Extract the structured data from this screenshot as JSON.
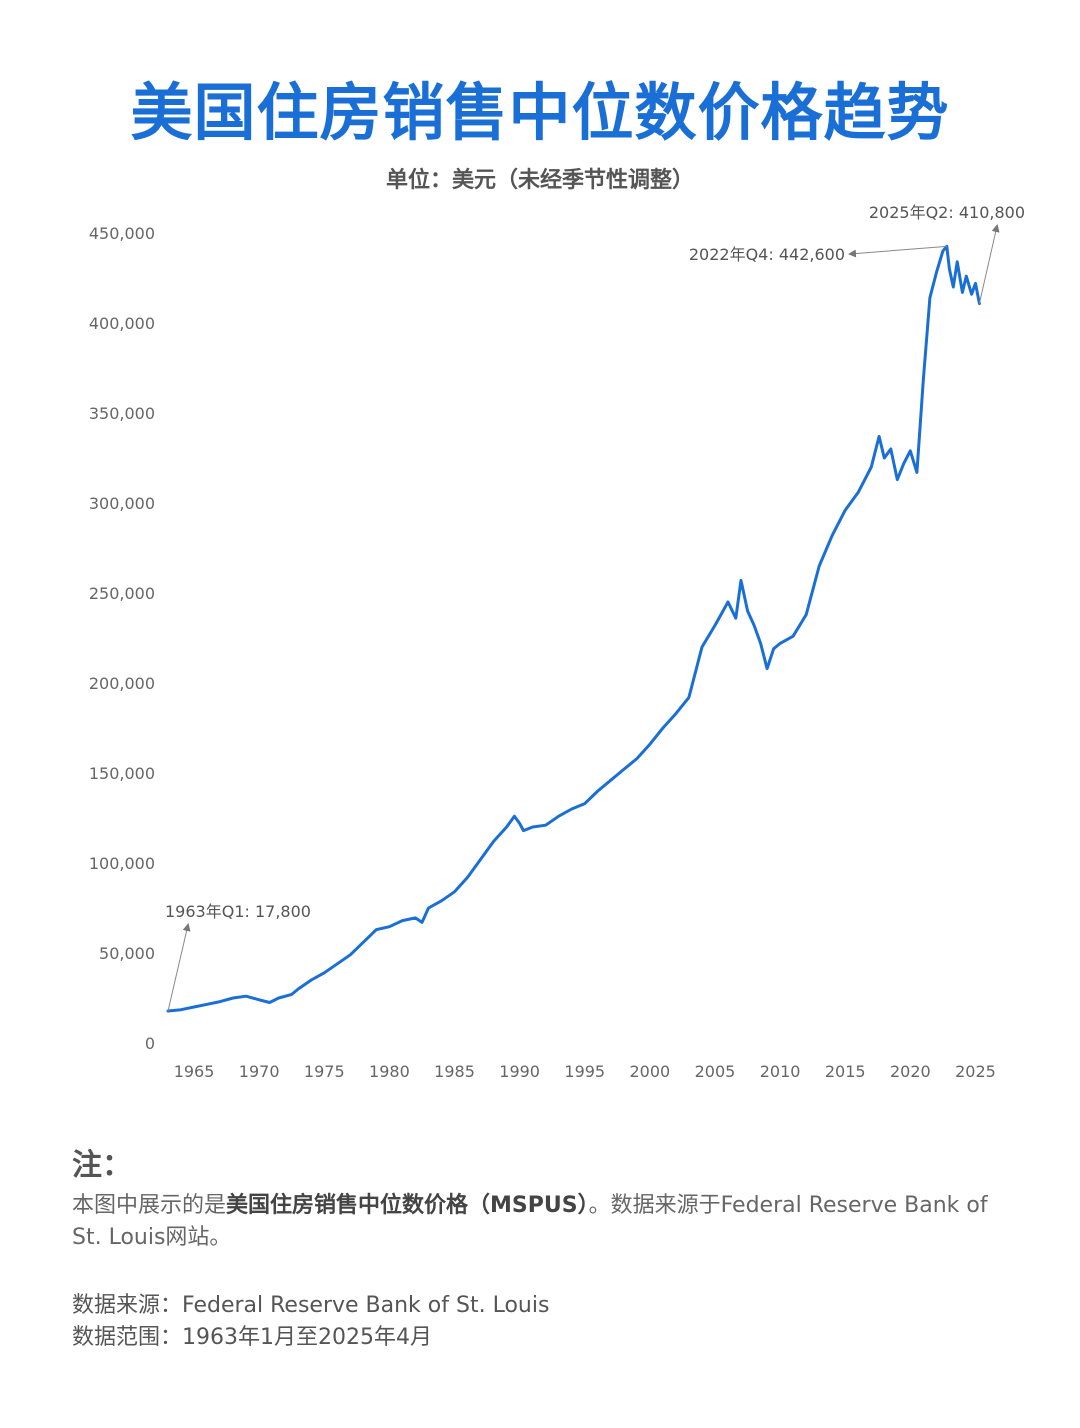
{
  "header": {
    "title": "美国住房销售中位数价格趋势",
    "subtitle": "单位：美元（未经季节性调整）"
  },
  "chart_data": {
    "type": "line",
    "xlim": [
      1963,
      2026.5
    ],
    "ylim": [
      0,
      450000
    ],
    "x_ticks": [
      1965,
      1970,
      1975,
      1980,
      1985,
      1990,
      1995,
      2000,
      2005,
      2010,
      2015,
      2020,
      2025
    ],
    "y_ticks": [
      0,
      50000,
      100000,
      150000,
      200000,
      250000,
      300000,
      350000,
      400000,
      450000
    ],
    "y_tick_labels": [
      "0",
      "50,000",
      "100,000",
      "150,000",
      "200,000",
      "250,000",
      "300,000",
      "350,000",
      "400,000",
      "450,000"
    ],
    "grid": false,
    "line_color": "#1a6fd6",
    "series": [
      {
        "x": [
          1963.0,
          1964.0,
          1965.0,
          1966.0,
          1967.0,
          1968.0,
          1969.0,
          1970.0,
          1970.8,
          1971.5,
          1972.5,
          1973.0,
          1974.0,
          1975.0,
          1976.0,
          1977.0,
          1978.0,
          1979.0,
          1980.0,
          1981.0,
          1982.0,
          1982.5,
          1983.0,
          1984.0,
          1985.0,
          1986.0,
          1987.0,
          1988.0,
          1989.0,
          1989.6,
          1990.0,
          1990.3,
          1991.0,
          1992.0,
          1993.0,
          1994.0,
          1995.0,
          1996.0,
          1997.0,
          1998.0,
          1999.0,
          2000.0,
          2001.0,
          2002.0,
          2003.0,
          2004.0,
          2005.0,
          2006.0,
          2006.6,
          2007.0,
          2007.5,
          2008.0,
          2008.5,
          2009.0,
          2009.5,
          2010.0,
          2011.0,
          2012.0,
          2013.0,
          2014.0,
          2015.0,
          2016.0,
          2017.0,
          2017.6,
          2018.0,
          2018.5,
          2019.0,
          2019.5,
          2020.0,
          2020.5,
          2021.0,
          2021.5,
          2022.0,
          2022.5,
          2022.8,
          2023.0,
          2023.3,
          2023.6,
          2024.0,
          2024.3,
          2024.7,
          2025.0,
          2025.3
        ],
        "y": [
          17800,
          18500,
          20000,
          21500,
          23000,
          25000,
          26000,
          24000,
          22500,
          25000,
          27000,
          30000,
          35000,
          39000,
          44000,
          49000,
          56000,
          63000,
          64600,
          68000,
          69500,
          67000,
          75000,
          79000,
          84000,
          92000,
          102000,
          112000,
          120000,
          126000,
          122000,
          118000,
          120000,
          121000,
          126000,
          130000,
          133000,
          140000,
          146000,
          152000,
          158000,
          166000,
          175000,
          183000,
          192000,
          220000,
          232000,
          245000,
          236000,
          257000,
          240000,
          232000,
          222000,
          208000,
          219000,
          222000,
          226000,
          238000,
          265000,
          282000,
          296000,
          306000,
          320000,
          337000,
          325000,
          330000,
          313000,
          322000,
          329000,
          317000,
          369000,
          414000,
          428000,
          440000,
          442600,
          430000,
          420000,
          434000,
          417000,
          426000,
          416000,
          422000,
          410800
        ]
      }
    ],
    "annotations": [
      {
        "label": "1963年Q1: 17,800",
        "x": 1963.0,
        "y": 17800
      },
      {
        "label": "2022年Q4: 442,600",
        "x": 2022.8,
        "y": 442600
      },
      {
        "label": "2025年Q2: 410,800",
        "x": 2025.3,
        "y": 410800
      }
    ]
  },
  "notes": {
    "heading": "注：",
    "body_before": "本图中展示的是",
    "body_bold": "美国住房销售中位数价格（MSPUS）",
    "body_after": "。数据来源于Federal Reserve Bank of St. Louis网站。"
  },
  "meta": {
    "source": "数据来源：Federal Reserve Bank of St. Louis",
    "range": "数据范围：1963年1月至2025年4月"
  }
}
